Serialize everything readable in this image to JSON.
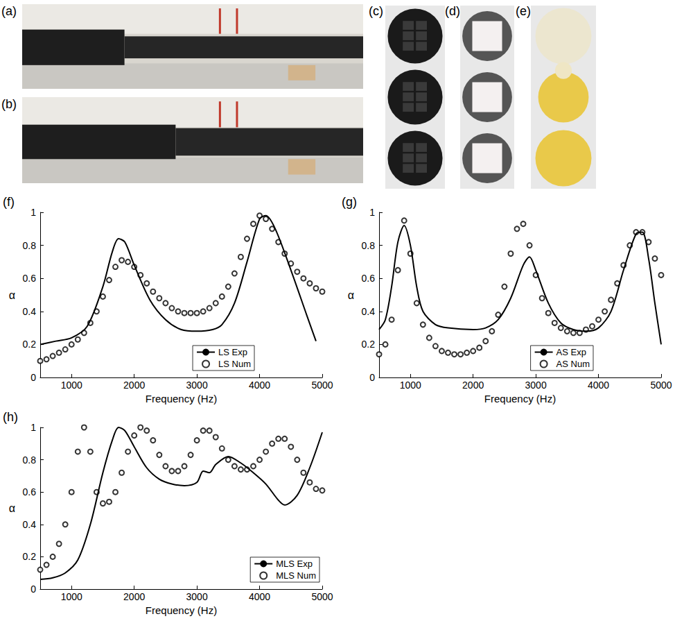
{
  "photos": [
    {
      "label": "(a)"
    },
    {
      "label": "(b)"
    },
    {
      "label": "(c)"
    },
    {
      "label": "(d)"
    },
    {
      "label": "(e)"
    }
  ],
  "chart_data": [
    {
      "type": "line",
      "title": "(f)",
      "xlabel": "Frequency (Hz)",
      "ylabel": "α",
      "xlim": [
        500,
        5000
      ],
      "xticks": [
        1000,
        2000,
        3000,
        4000,
        5000
      ],
      "ylim": [
        0,
        1
      ],
      "yticks": [
        0,
        0.2,
        0.4,
        0.6,
        0.8,
        1
      ],
      "grid": false,
      "legend": "lower right",
      "series": [
        {
          "name": "LS Exp",
          "type": "line",
          "color": "#000000",
          "marker": "none",
          "line_style": "solid",
          "x": [
            500,
            750,
            1000,
            1250,
            1500,
            1650,
            1750,
            1850,
            2000,
            2250,
            2500,
            2750,
            3000,
            3250,
            3400,
            3600,
            3800,
            4000,
            4100,
            4250,
            4500,
            4750,
            4900
          ],
          "values": [
            0.2,
            0.22,
            0.24,
            0.31,
            0.55,
            0.76,
            0.84,
            0.82,
            0.68,
            0.47,
            0.35,
            0.29,
            0.28,
            0.29,
            0.32,
            0.45,
            0.7,
            0.96,
            0.98,
            0.9,
            0.65,
            0.38,
            0.22
          ]
        },
        {
          "name": "LS Num",
          "type": "scatter",
          "color": "#000000",
          "marker": "circle",
          "line_style": "none",
          "x": [
            500,
            600,
            700,
            800,
            900,
            1000,
            1100,
            1200,
            1300,
            1400,
            1500,
            1600,
            1700,
            1800,
            1900,
            2000,
            2100,
            2200,
            2300,
            2400,
            2500,
            2600,
            2700,
            2800,
            2900,
            3000,
            3100,
            3200,
            3300,
            3400,
            3500,
            3600,
            3700,
            3800,
            3900,
            4000,
            4100,
            4200,
            4300,
            4400,
            4500,
            4600,
            4700,
            4800,
            4900,
            5000
          ],
          "values": [
            0.1,
            0.11,
            0.13,
            0.15,
            0.17,
            0.2,
            0.23,
            0.27,
            0.33,
            0.4,
            0.49,
            0.59,
            0.67,
            0.71,
            0.7,
            0.67,
            0.62,
            0.57,
            0.52,
            0.48,
            0.45,
            0.42,
            0.4,
            0.39,
            0.39,
            0.39,
            0.4,
            0.42,
            0.45,
            0.49,
            0.55,
            0.63,
            0.73,
            0.84,
            0.93,
            0.98,
            0.96,
            0.9,
            0.82,
            0.75,
            0.69,
            0.64,
            0.6,
            0.57,
            0.54,
            0.52
          ]
        }
      ]
    },
    {
      "type": "line",
      "title": "(g)",
      "xlabel": "Frequency (Hz)",
      "ylabel": "α",
      "xlim": [
        500,
        5000
      ],
      "xticks": [
        1000,
        2000,
        3000,
        4000,
        5000
      ],
      "ylim": [
        0,
        1
      ],
      "yticks": [
        0,
        0.2,
        0.4,
        0.6,
        0.8,
        1
      ],
      "grid": false,
      "legend": "lower right",
      "series": [
        {
          "name": "AS Exp",
          "type": "line",
          "color": "#000000",
          "marker": "none",
          "line_style": "solid",
          "x": [
            500,
            600,
            700,
            800,
            900,
            1000,
            1100,
            1200,
            1400,
            1600,
            2000,
            2200,
            2400,
            2600,
            2800,
            2900,
            3000,
            3200,
            3400,
            3600,
            3800,
            4000,
            4200,
            4400,
            4600,
            4700,
            4800,
            4900,
            5000
          ],
          "values": [
            0.29,
            0.35,
            0.55,
            0.82,
            0.92,
            0.8,
            0.55,
            0.4,
            0.32,
            0.3,
            0.29,
            0.3,
            0.35,
            0.48,
            0.68,
            0.73,
            0.65,
            0.45,
            0.33,
            0.29,
            0.28,
            0.3,
            0.4,
            0.65,
            0.87,
            0.88,
            0.72,
            0.45,
            0.2
          ]
        },
        {
          "name": "AS Num",
          "type": "scatter",
          "color": "#000000",
          "marker": "circle",
          "line_style": "none",
          "x": [
            500,
            600,
            700,
            800,
            900,
            1000,
            1100,
            1200,
            1300,
            1400,
            1500,
            1600,
            1700,
            1800,
            1900,
            2000,
            2100,
            2200,
            2300,
            2400,
            2500,
            2600,
            2700,
            2800,
            2900,
            3000,
            3100,
            3200,
            3300,
            3400,
            3500,
            3600,
            3700,
            3800,
            3900,
            4000,
            4100,
            4200,
            4300,
            4400,
            4500,
            4600,
            4700,
            4800,
            4900,
            5000
          ],
          "values": [
            0.14,
            0.2,
            0.35,
            0.65,
            0.95,
            0.75,
            0.45,
            0.32,
            0.24,
            0.19,
            0.16,
            0.15,
            0.14,
            0.14,
            0.15,
            0.16,
            0.18,
            0.22,
            0.28,
            0.38,
            0.55,
            0.75,
            0.9,
            0.93,
            0.8,
            0.62,
            0.48,
            0.39,
            0.33,
            0.3,
            0.28,
            0.27,
            0.27,
            0.29,
            0.31,
            0.35,
            0.4,
            0.47,
            0.57,
            0.68,
            0.8,
            0.88,
            0.88,
            0.82,
            0.72,
            0.62
          ]
        }
      ]
    },
    {
      "type": "line",
      "title": "(h)",
      "xlabel": "Frequency (Hz)",
      "ylabel": "α",
      "xlim": [
        500,
        5000
      ],
      "xticks": [
        1000,
        2000,
        3000,
        4000,
        5000
      ],
      "ylim": [
        0,
        1
      ],
      "yticks": [
        0,
        0.2,
        0.4,
        0.6,
        0.8,
        1
      ],
      "grid": false,
      "legend": "lower right",
      "series": [
        {
          "name": "MLS Exp",
          "type": "line",
          "color": "#000000",
          "marker": "none",
          "line_style": "solid",
          "x": [
            500,
            700,
            900,
            1100,
            1300,
            1500,
            1650,
            1750,
            1850,
            2000,
            2200,
            2400,
            2600,
            2800,
            3000,
            3100,
            3200,
            3300,
            3500,
            3700,
            3900,
            4100,
            4300,
            4400,
            4600,
            4800,
            5000
          ],
          "values": [
            0.06,
            0.07,
            0.1,
            0.18,
            0.4,
            0.72,
            0.92,
            1.0,
            0.98,
            0.88,
            0.75,
            0.68,
            0.65,
            0.64,
            0.66,
            0.73,
            0.72,
            0.77,
            0.82,
            0.78,
            0.72,
            0.65,
            0.55,
            0.52,
            0.58,
            0.75,
            0.97
          ]
        },
        {
          "name": "MLS Num",
          "type": "scatter",
          "color": "#000000",
          "marker": "circle",
          "line_style": "none",
          "x": [
            500,
            600,
            700,
            800,
            900,
            1000,
            1100,
            1200,
            1300,
            1400,
            1500,
            1600,
            1700,
            1800,
            1900,
            2000,
            2100,
            2200,
            2300,
            2400,
            2500,
            2600,
            2700,
            2800,
            2900,
            3000,
            3100,
            3200,
            3300,
            3400,
            3500,
            3600,
            3700,
            3800,
            3900,
            4000,
            4100,
            4200,
            4300,
            4400,
            4500,
            4600,
            4700,
            4800,
            4900,
            5000
          ],
          "values": [
            0.12,
            0.15,
            0.2,
            0.28,
            0.4,
            0.6,
            0.85,
            1.0,
            0.85,
            0.6,
            0.53,
            0.54,
            0.6,
            0.72,
            0.85,
            0.95,
            1.0,
            0.98,
            0.92,
            0.83,
            0.76,
            0.73,
            0.73,
            0.76,
            0.83,
            0.92,
            0.98,
            0.98,
            0.94,
            0.87,
            0.8,
            0.76,
            0.74,
            0.74,
            0.76,
            0.8,
            0.85,
            0.9,
            0.93,
            0.93,
            0.88,
            0.8,
            0.72,
            0.66,
            0.62,
            0.61
          ]
        }
      ]
    }
  ]
}
